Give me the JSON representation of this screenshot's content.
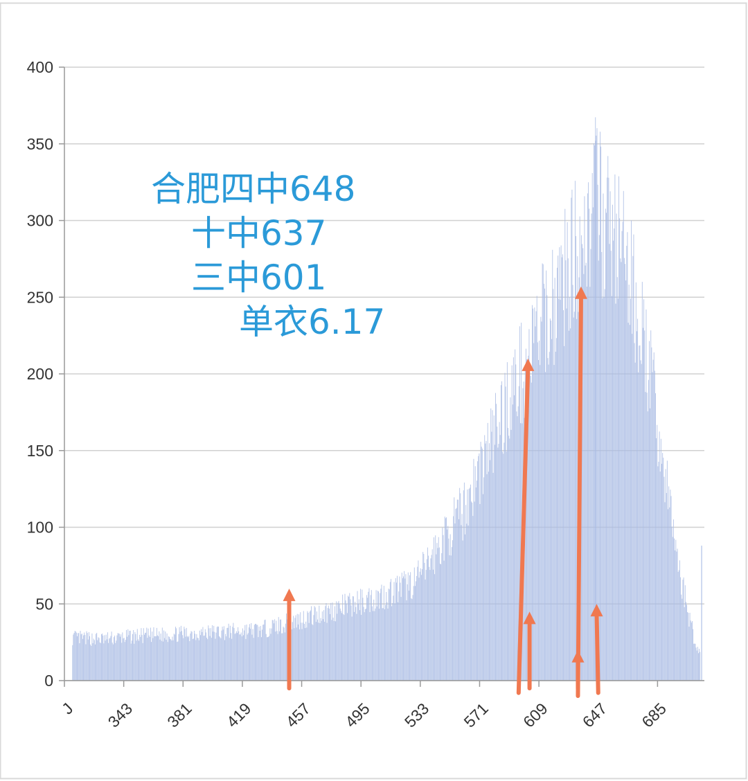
{
  "chart_data": {
    "type": "bar",
    "title": "",
    "xlabel": "",
    "ylabel": "",
    "xlim": [
      305,
      715
    ],
    "ylim": [
      0,
      400
    ],
    "y_ticks": [
      0,
      50,
      100,
      150,
      200,
      250,
      300,
      350,
      400
    ],
    "x_ticks": [
      305,
      343,
      381,
      419,
      457,
      495,
      533,
      571,
      609,
      647,
      685
    ],
    "x_tick_labels": [
      "J",
      "343",
      "381",
      "419",
      "457",
      "495",
      "533",
      "571",
      "609",
      "647",
      "685"
    ],
    "bar_color": "#aabce4",
    "grid": true,
    "legend": "none",
    "keypoints": {
      "x": [
        310,
        330,
        350,
        370,
        390,
        410,
        430,
        450,
        470,
        490,
        510,
        530,
        550,
        560,
        570,
        580,
        590,
        600,
        610,
        620,
        630,
        640,
        645,
        650,
        660,
        670,
        680,
        690,
        700,
        710
      ],
      "y": [
        28,
        27,
        29,
        30,
        31,
        32,
        33,
        38,
        44,
        50,
        56,
        65,
        95,
        110,
        135,
        160,
        185,
        205,
        230,
        250,
        275,
        295,
        315,
        300,
        285,
        250,
        200,
        130,
        65,
        20
      ]
    },
    "annotations": [
      {
        "text": "合肥四中648",
        "color": "#2b9ad8"
      },
      {
        "text": "十中637",
        "color": "#2b9ad8"
      },
      {
        "text": "三中601",
        "color": "#2b9ad8"
      },
      {
        "text": "单衣6.17",
        "color": "#2b9ad8"
      }
    ],
    "arrows": [
      {
        "x_start": 449,
        "x_end": 449,
        "y_start": -5,
        "y_end": 60
      },
      {
        "x_start": 596,
        "x_end": 602,
        "y_start": -8,
        "y_end": 210
      },
      {
        "x_start": 603,
        "x_end": 603,
        "y_start": -5,
        "y_end": 45
      },
      {
        "x_start": 634,
        "x_end": 636,
        "y_start": -10,
        "y_end": 257
      },
      {
        "x_start": 634,
        "x_end": 634,
        "y_start": -5,
        "y_end": 20
      },
      {
        "x_start": 647,
        "x_end": 646,
        "y_start": -8,
        "y_end": 50
      }
    ],
    "arrow_color": "#f07850"
  }
}
